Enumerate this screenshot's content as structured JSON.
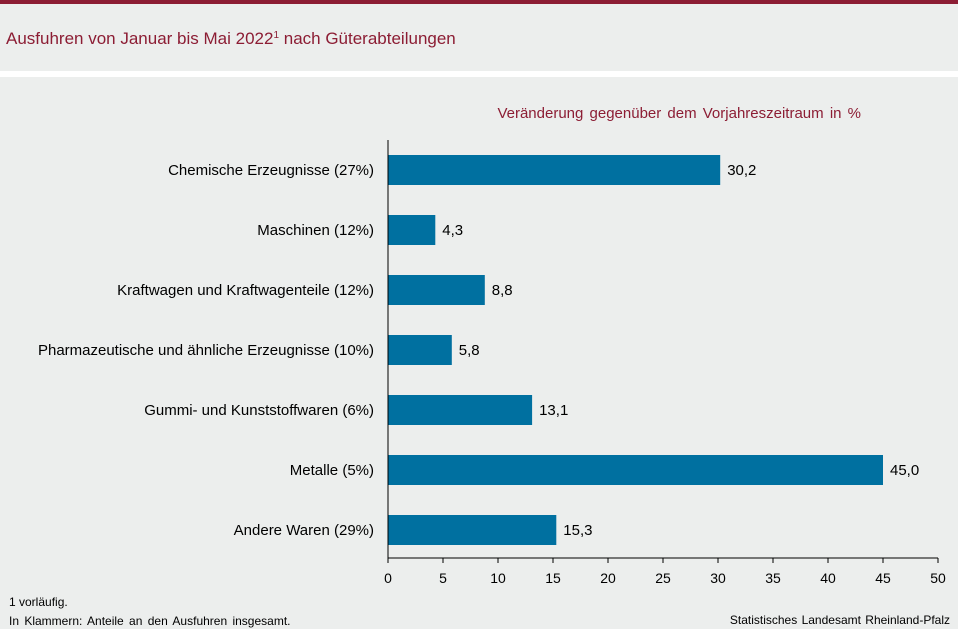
{
  "header": {
    "title": "Ausfuhren von Januar bis Mai 2022",
    "title_sup": "1",
    "title_suffix": " nach Güterabteilungen"
  },
  "chart_data": {
    "type": "bar",
    "orientation": "horizontal",
    "title": "Ausfuhren von Januar bis Mai 2022¹ nach Güterabteilungen",
    "subtitle": "Veränderung gegenüber dem Vorjahreszeitraum in %",
    "categories": [
      "Chemische Erzeugnisse (27%)",
      "Maschinen (12%)",
      "Kraftwagen und Kraftwagenteile (12%)",
      "Pharmazeutische und ähnliche Erzeugnisse (10%)",
      "Gummi- und Kunststoffwaren (6%)",
      "Metalle (5%)",
      "Andere Waren (29%)"
    ],
    "values": [
      30.2,
      4.3,
      8.8,
      5.8,
      13.1,
      45.0,
      15.3
    ],
    "value_labels": [
      "30,2",
      "4,3",
      "8,8",
      "5,8",
      "13,1",
      "45,0",
      "15,3"
    ],
    "xlim": [
      0,
      50
    ],
    "xticks": [
      0,
      5,
      10,
      15,
      20,
      25,
      30,
      35,
      40,
      45,
      50
    ],
    "bar_color": "#0070a0",
    "grid": false
  },
  "footnotes": {
    "line1": "1 vorläufig.",
    "line2": "In Klammern: Anteile an den Ausfuhren insgesamt."
  },
  "source": "Statistisches Landesamt Rheinland-Pfalz",
  "colors": {
    "accent": "#8c1d34",
    "background": "#eceeed",
    "bar": "#0070a0"
  }
}
